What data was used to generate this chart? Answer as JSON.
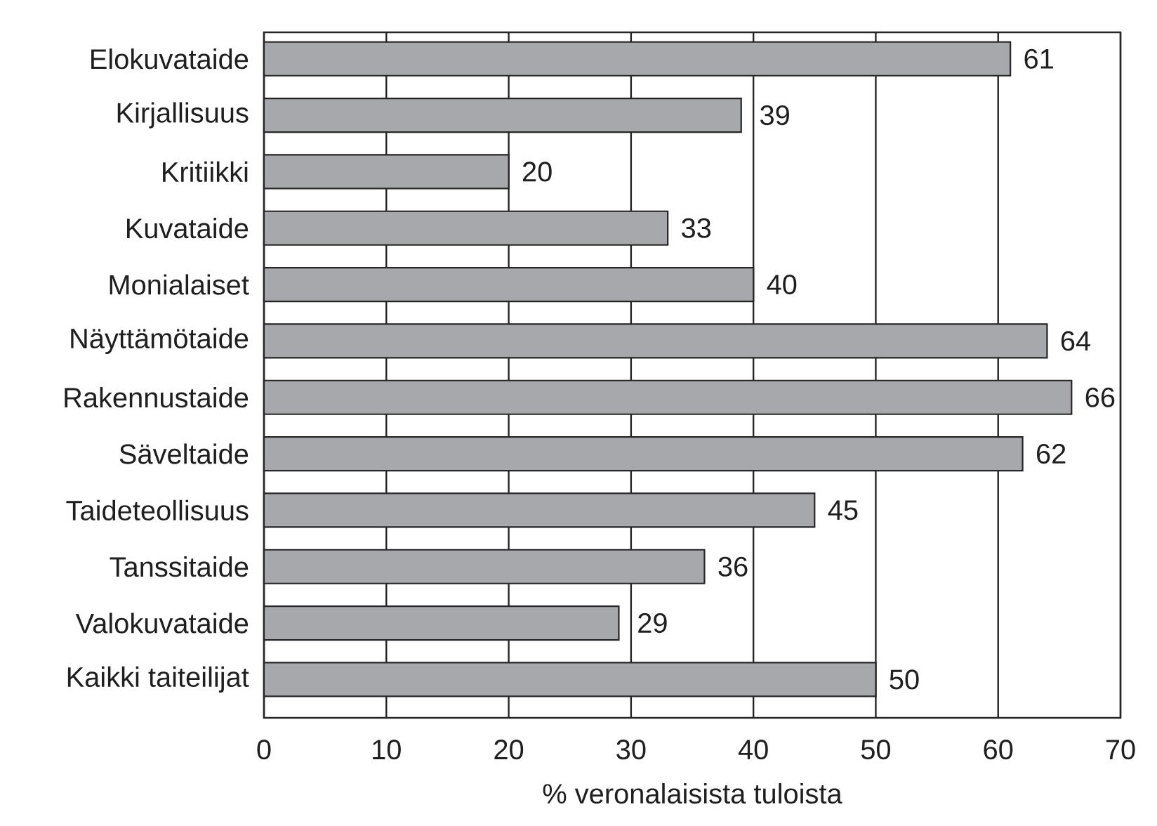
{
  "chart_data": {
    "type": "bar",
    "orientation": "horizontal",
    "xlabel": "% veronalaisista tuloista",
    "categories": [
      "Elokuvataide",
      "Kirjallisuus",
      "Kritiikki",
      "Kuvataide",
      "Monialaiset",
      "Näyttämötaide",
      "Rakennustaide",
      "Säveltaide",
      "Taideteollisuus",
      "Tanssitaide",
      "Valokuvataide",
      "Kaikki taiteilijat"
    ],
    "values": [
      61,
      39,
      20,
      33,
      40,
      64,
      66,
      62,
      45,
      36,
      29,
      50
    ],
    "color": "#a7a8ab",
    "xlim": [
      0,
      70
    ],
    "xticks": [
      0,
      10,
      20,
      30,
      40,
      50,
      60,
      70
    ],
    "grid": "x",
    "data_labels": true
  }
}
